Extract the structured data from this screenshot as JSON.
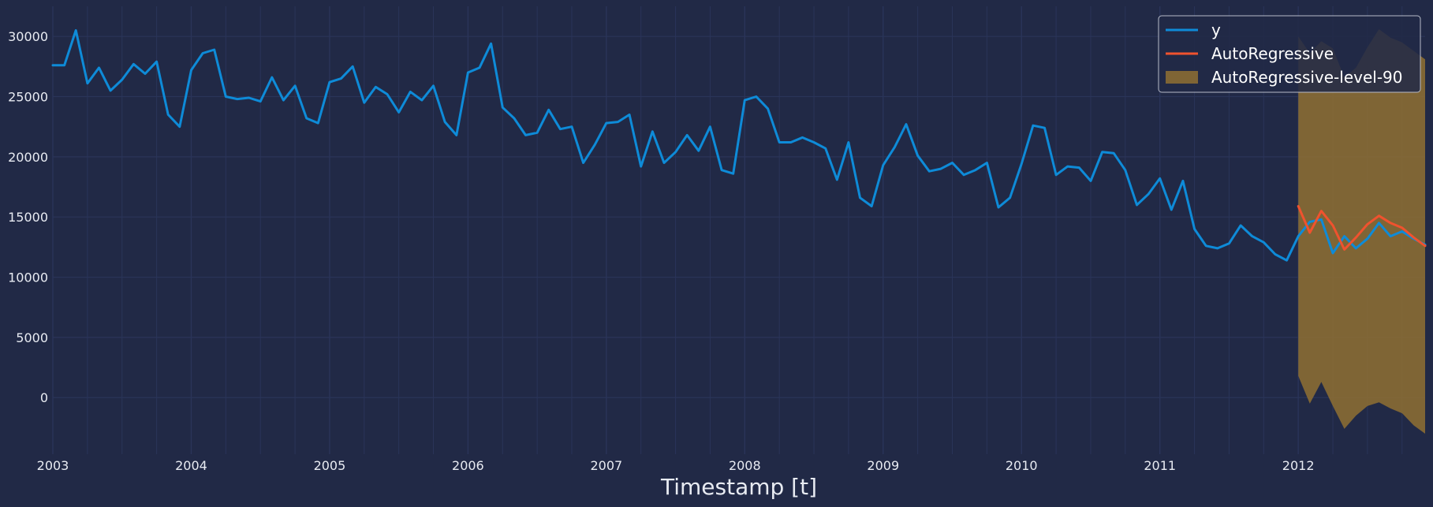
{
  "chart_data": {
    "type": "line",
    "xlabel": "Timestamp [t]",
    "ylabel": "",
    "x_tick_labels": [
      "2003",
      "2004",
      "2005",
      "2006",
      "2007",
      "2008",
      "2009",
      "2010",
      "2011",
      "2012"
    ],
    "y_ticks": [
      0,
      5000,
      10000,
      15000,
      20000,
      25000,
      30000
    ],
    "ylim": [
      -4700,
      32500
    ],
    "xlim": [
      "2003-01",
      "2012-12"
    ],
    "grid": true,
    "legend_position": "top-right",
    "colors": {
      "background": "#212946",
      "grid": "#2A3459",
      "y": "#0E8BD8",
      "forecast": "#F0522E",
      "interval": "#8F7032"
    },
    "series": [
      {
        "name": "y",
        "start": "2003-01",
        "frequency": "monthly",
        "values": [
          27600,
          27600,
          30500,
          26100,
          27400,
          25500,
          26400,
          27700,
          26900,
          27900,
          23500,
          22500,
          27200,
          28600,
          28900,
          25000,
          24800,
          24900,
          24600,
          26600,
          24700,
          25900,
          23200,
          22800,
          26200,
          26500,
          27500,
          24500,
          25800,
          25200,
          23700,
          25400,
          24700,
          25900,
          22900,
          21800,
          27000,
          27400,
          29400,
          24100,
          23200,
          21800,
          22000,
          23900,
          22300,
          22500,
          19500,
          21000,
          22800,
          22900,
          23500,
          19200,
          22100,
          19500,
          20400,
          21800,
          20500,
          22500,
          18900,
          18600,
          24700,
          25000,
          24000,
          21200,
          21200,
          21600,
          21200,
          20700,
          18100,
          21200,
          16600,
          15900,
          19300,
          20800,
          22700,
          20100,
          18800,
          19000,
          19500,
          18500,
          18900,
          19500,
          15800,
          16600,
          19400,
          22600,
          22400,
          18500,
          19200,
          19100,
          18000,
          20400,
          20300,
          18900,
          16000,
          16900,
          18200,
          15600,
          18000,
          14000,
          12600,
          12400,
          12800,
          14300,
          13400,
          12900,
          11900,
          11400,
          13400,
          14600,
          14800,
          12000,
          13400,
          12400,
          13200,
          14500,
          13400,
          13800,
          13200,
          12700
        ]
      },
      {
        "name": "AutoRegressive",
        "start": "2012-01",
        "frequency": "monthly",
        "values": [
          15900,
          13700,
          15500,
          14300,
          12300,
          13300,
          14400,
          15100,
          14500,
          14100,
          13300,
          12600
        ]
      },
      {
        "name": "AutoRegressive-level-90",
        "start": "2012-01",
        "frequency": "monthly",
        "type": "band",
        "upper": [
          30000,
          28600,
          29600,
          29000,
          26600,
          27400,
          29100,
          30600,
          29900,
          29500,
          28800,
          28100
        ],
        "lower": [
          1800,
          -500,
          1300,
          -700,
          -2600,
          -1500,
          -700,
          -400,
          -900,
          -1300,
          -2300,
          -3000
        ]
      }
    ]
  }
}
